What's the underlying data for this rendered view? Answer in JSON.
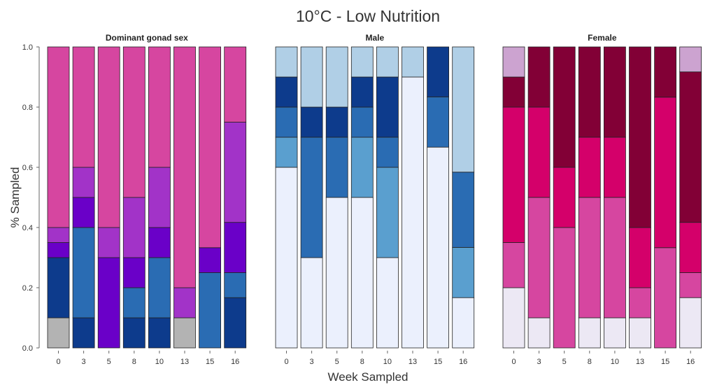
{
  "chart_data": {
    "type": "bar",
    "stacked": true,
    "title": "10°C - Low Nutrition",
    "xlabel": "Week Sampled",
    "ylabel": "% Sampled",
    "ylim": [
      0,
      1.0
    ],
    "yticks": [
      "0.0",
      "0.2",
      "0.4",
      "0.6",
      "0.8",
      "1.0"
    ],
    "yticks_values": [
      0,
      0.2,
      0.4,
      0.6,
      0.8,
      1.0
    ],
    "grid": false,
    "legend": "none",
    "categories": [
      "0",
      "3",
      "5",
      "8",
      "10",
      "13",
      "15",
      "16"
    ],
    "panels": [
      {
        "title": "Dominant gonad sex",
        "stacks": [
          [
            {
              "v": 0.1,
              "c": "#b3b3b3"
            },
            {
              "v": 0.2,
              "c": "#0d3b8c"
            },
            {
              "v": 0.05,
              "c": "#6a00c8"
            },
            {
              "v": 0.05,
              "c": "#a233c8"
            },
            {
              "v": 0.6,
              "c": "#d646a0"
            }
          ],
          [
            {
              "v": 0.1,
              "c": "#0d3b8c"
            },
            {
              "v": 0.3,
              "c": "#2a6cb3"
            },
            {
              "v": 0.1,
              "c": "#6a00c8"
            },
            {
              "v": 0.1,
              "c": "#a233c8"
            },
            {
              "v": 0.4,
              "c": "#d646a0"
            }
          ],
          [
            {
              "v": 0.3,
              "c": "#6a00c8"
            },
            {
              "v": 0.1,
              "c": "#a233c8"
            },
            {
              "v": 0.6,
              "c": "#d646a0"
            }
          ],
          [
            {
              "v": 0.1,
              "c": "#0d3b8c"
            },
            {
              "v": 0.1,
              "c": "#2a6cb3"
            },
            {
              "v": 0.1,
              "c": "#6a00c8"
            },
            {
              "v": 0.2,
              "c": "#a233c8"
            },
            {
              "v": 0.5,
              "c": "#d646a0"
            }
          ],
          [
            {
              "v": 0.1,
              "c": "#0d3b8c"
            },
            {
              "v": 0.2,
              "c": "#2a6cb3"
            },
            {
              "v": 0.1,
              "c": "#6a00c8"
            },
            {
              "v": 0.2,
              "c": "#a233c8"
            },
            {
              "v": 0.4,
              "c": "#d646a0"
            }
          ],
          [
            {
              "v": 0.1,
              "c": "#b3b3b3"
            },
            {
              "v": 0.1,
              "c": "#a233c8"
            },
            {
              "v": 0.8,
              "c": "#d646a0"
            }
          ],
          [
            {
              "v": 0.25,
              "c": "#2a6cb3"
            },
            {
              "v": 0.083,
              "c": "#6a00c8"
            },
            {
              "v": 0.667,
              "c": "#d646a0"
            }
          ],
          [
            {
              "v": 0.167,
              "c": "#0d3b8c"
            },
            {
              "v": 0.083,
              "c": "#2a6cb3"
            },
            {
              "v": 0.167,
              "c": "#6a00c8"
            },
            {
              "v": 0.333,
              "c": "#a233c8"
            },
            {
              "v": 0.25,
              "c": "#d646a0"
            }
          ]
        ]
      },
      {
        "title": "Male",
        "stacks": [
          [
            {
              "v": 0.6,
              "c": "#ebf0fd"
            },
            {
              "v": 0.1,
              "c": "#5a9fcf"
            },
            {
              "v": 0.1,
              "c": "#2a6cb3"
            },
            {
              "v": 0.1,
              "c": "#0d3b8c"
            },
            {
              "v": 0.1,
              "c": "#b0cfe6"
            }
          ],
          [
            {
              "v": 0.3,
              "c": "#ebf0fd"
            },
            {
              "v": 0.4,
              "c": "#2a6cb3"
            },
            {
              "v": 0.1,
              "c": "#0d3b8c"
            },
            {
              "v": 0.2,
              "c": "#b0cfe6"
            }
          ],
          [
            {
              "v": 0.5,
              "c": "#ebf0fd"
            },
            {
              "v": 0.2,
              "c": "#2a6cb3"
            },
            {
              "v": 0.1,
              "c": "#0d3b8c"
            },
            {
              "v": 0.2,
              "c": "#b0cfe6"
            }
          ],
          [
            {
              "v": 0.5,
              "c": "#ebf0fd"
            },
            {
              "v": 0.2,
              "c": "#5a9fcf"
            },
            {
              "v": 0.1,
              "c": "#2a6cb3"
            },
            {
              "v": 0.1,
              "c": "#0d3b8c"
            },
            {
              "v": 0.1,
              "c": "#b0cfe6"
            }
          ],
          [
            {
              "v": 0.3,
              "c": "#ebf0fd"
            },
            {
              "v": 0.3,
              "c": "#5a9fcf"
            },
            {
              "v": 0.1,
              "c": "#2a6cb3"
            },
            {
              "v": 0.2,
              "c": "#0d3b8c"
            },
            {
              "v": 0.1,
              "c": "#b0cfe6"
            }
          ],
          [
            {
              "v": 0.9,
              "c": "#ebf0fd"
            },
            {
              "v": 0.1,
              "c": "#b0cfe6"
            }
          ],
          [
            {
              "v": 0.667,
              "c": "#ebf0fd"
            },
            {
              "v": 0.167,
              "c": "#2a6cb3"
            },
            {
              "v": 0.166,
              "c": "#0d3b8c"
            }
          ],
          [
            {
              "v": 0.167,
              "c": "#ebf0fd"
            },
            {
              "v": 0.167,
              "c": "#5a9fcf"
            },
            {
              "v": 0.25,
              "c": "#2a6cb3"
            },
            {
              "v": 0.416,
              "c": "#b0cfe6"
            }
          ]
        ]
      },
      {
        "title": "Female",
        "stacks": [
          [
            {
              "v": 0.2,
              "c": "#ece8f4"
            },
            {
              "v": 0.15,
              "c": "#d646a0"
            },
            {
              "v": 0.45,
              "c": "#d4006a"
            },
            {
              "v": 0.1,
              "c": "#820036"
            },
            {
              "v": 0.1,
              "c": "#cca3d0"
            }
          ],
          [
            {
              "v": 0.1,
              "c": "#ece8f4"
            },
            {
              "v": 0.4,
              "c": "#d646a0"
            },
            {
              "v": 0.3,
              "c": "#d4006a"
            },
            {
              "v": 0.2,
              "c": "#820036"
            }
          ],
          [
            {
              "v": 0.4,
              "c": "#d646a0"
            },
            {
              "v": 0.2,
              "c": "#d4006a"
            },
            {
              "v": 0.4,
              "c": "#820036"
            }
          ],
          [
            {
              "v": 0.1,
              "c": "#ece8f4"
            },
            {
              "v": 0.4,
              "c": "#d646a0"
            },
            {
              "v": 0.2,
              "c": "#d4006a"
            },
            {
              "v": 0.3,
              "c": "#820036"
            }
          ],
          [
            {
              "v": 0.1,
              "c": "#ece8f4"
            },
            {
              "v": 0.4,
              "c": "#d646a0"
            },
            {
              "v": 0.2,
              "c": "#d4006a"
            },
            {
              "v": 0.3,
              "c": "#820036"
            }
          ],
          [
            {
              "v": 0.1,
              "c": "#ece8f4"
            },
            {
              "v": 0.1,
              "c": "#d646a0"
            },
            {
              "v": 0.2,
              "c": "#d4006a"
            },
            {
              "v": 0.6,
              "c": "#820036"
            }
          ],
          [
            {
              "v": 0.333,
              "c": "#d646a0"
            },
            {
              "v": 0.5,
              "c": "#d4006a"
            },
            {
              "v": 0.167,
              "c": "#820036"
            }
          ],
          [
            {
              "v": 0.167,
              "c": "#ece8f4"
            },
            {
              "v": 0.083,
              "c": "#d646a0"
            },
            {
              "v": 0.167,
              "c": "#d4006a"
            },
            {
              "v": 0.5,
              "c": "#820036"
            },
            {
              "v": 0.083,
              "c": "#cca3d0"
            }
          ]
        ]
      }
    ]
  }
}
